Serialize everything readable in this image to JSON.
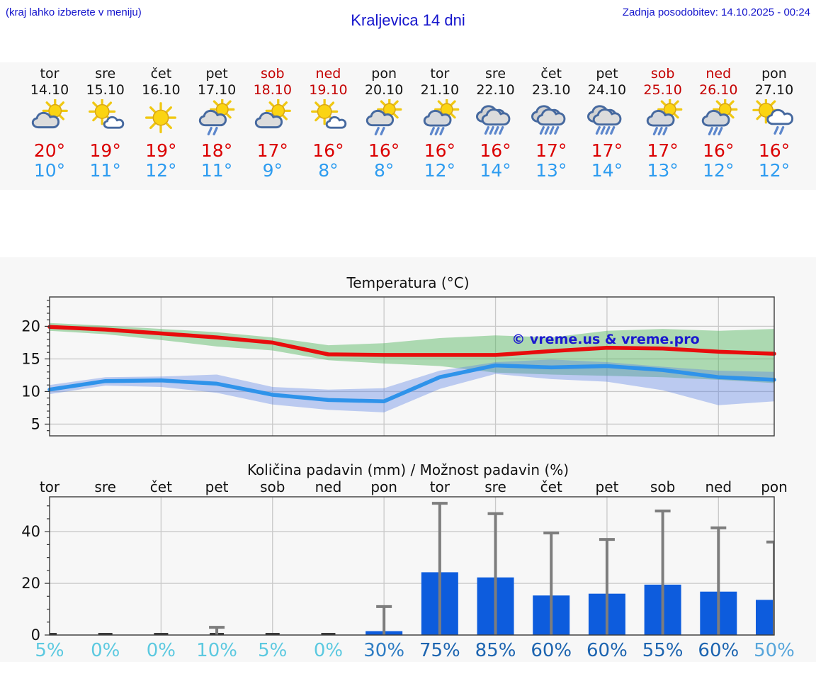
{
  "header": {
    "hint": "(kraj lahko izberete v meniju)",
    "title": "Kraljevica 14 dni",
    "last_update": "Zadnja posodobitev: 14.10.2025 - 00:24",
    "accent_color": "#1414cc"
  },
  "forecast_days": [
    {
      "name": "tor",
      "date": "14.10",
      "weekend": false,
      "icon": "sun-cloud",
      "tmax": "20°",
      "tmin": "10°"
    },
    {
      "name": "sre",
      "date": "15.10",
      "weekend": false,
      "icon": "sun-small-cloud",
      "tmax": "19°",
      "tmin": "11°"
    },
    {
      "name": "čet",
      "date": "16.10",
      "weekend": false,
      "icon": "sun",
      "tmax": "19°",
      "tmin": "12°"
    },
    {
      "name": "pet",
      "date": "17.10",
      "weekend": false,
      "icon": "sun-cloud-rain2",
      "tmax": "18°",
      "tmin": "11°"
    },
    {
      "name": "sob",
      "date": "18.10",
      "weekend": true,
      "icon": "sun-cloud",
      "tmax": "17°",
      "tmin": "9°"
    },
    {
      "name": "ned",
      "date": "19.10",
      "weekend": true,
      "icon": "sun-small-cloud",
      "tmax": "16°",
      "tmin": "8°"
    },
    {
      "name": "pon",
      "date": "20.10",
      "weekend": false,
      "icon": "sun-cloud-rain2",
      "tmax": "16°",
      "tmin": "8°"
    },
    {
      "name": "tor",
      "date": "21.10",
      "weekend": false,
      "icon": "sun-cloud-rain3",
      "tmax": "16°",
      "tmin": "12°"
    },
    {
      "name": "sre",
      "date": "22.10",
      "weekend": false,
      "icon": "clouds-rain4",
      "tmax": "16°",
      "tmin": "14°"
    },
    {
      "name": "čet",
      "date": "23.10",
      "weekend": false,
      "icon": "clouds-rain4",
      "tmax": "17°",
      "tmin": "13°"
    },
    {
      "name": "pet",
      "date": "24.10",
      "weekend": false,
      "icon": "clouds-rain4",
      "tmax": "17°",
      "tmin": "14°"
    },
    {
      "name": "sob",
      "date": "25.10",
      "weekend": true,
      "icon": "sun-cloud-rain3",
      "tmax": "17°",
      "tmin": "13°"
    },
    {
      "name": "ned",
      "date": "26.10",
      "weekend": true,
      "icon": "sun-cloud-rain3",
      "tmax": "16°",
      "tmin": "12°"
    },
    {
      "name": "pon",
      "date": "27.10",
      "weekend": false,
      "icon": "sun-whitecloud-rain2",
      "tmax": "16°",
      "tmin": "12°"
    }
  ],
  "chart_data": [
    {
      "type": "line",
      "title": "Temperatura (°C)",
      "x_days": [
        "tor",
        "sre",
        "čet",
        "pet",
        "sob",
        "ned",
        "pon",
        "tor",
        "sre",
        "čet",
        "pet",
        "sob",
        "ned",
        "pon"
      ],
      "ylim": [
        3.2,
        24.5
      ],
      "yticks": [
        5,
        10,
        15,
        20
      ],
      "grid_days": [
        2,
        4,
        6,
        8,
        10,
        12
      ],
      "watermark": "© vreme.us & vreme.pro",
      "series": [
        {
          "name": "max-temp",
          "color": "#e80c0c",
          "values": [
            19.9,
            19.5,
            18.9,
            18.3,
            17.5,
            15.7,
            15.6,
            15.6,
            15.6,
            16.2,
            16.7,
            16.6,
            16.1,
            15.8
          ]
        },
        {
          "name": "min-temp",
          "color": "#2f93ea",
          "values": [
            10.3,
            11.6,
            11.7,
            11.2,
            9.5,
            8.7,
            8.5,
            12.2,
            14.0,
            13.7,
            13.9,
            13.3,
            12.2,
            11.8
          ]
        }
      ],
      "bands": [
        {
          "name": "max-temp-range",
          "color": "rgba(80,180,90,0.45)",
          "upper": [
            20.5,
            20.1,
            19.6,
            19.1,
            18.3,
            17.1,
            17.4,
            18.2,
            18.6,
            18.3,
            19.3,
            19.6,
            19.3,
            19.6
          ],
          "lower": [
            19.3,
            18.8,
            17.9,
            16.9,
            16.3,
            14.8,
            14.3,
            13.9,
            12.9,
            12.6,
            12.4,
            12.2,
            11.8,
            11.3
          ]
        },
        {
          "name": "min-temp-range",
          "color": "rgba(90,130,230,0.38)",
          "upper": [
            11.0,
            12.2,
            12.3,
            12.6,
            10.7,
            10.3,
            10.5,
            13.2,
            14.5,
            14.9,
            14.5,
            13.8,
            13.2,
            13.0
          ],
          "lower": [
            9.6,
            10.9,
            10.7,
            9.8,
            8.0,
            7.2,
            6.8,
            10.4,
            12.7,
            11.9,
            11.5,
            10.2,
            7.9,
            8.5
          ]
        }
      ]
    },
    {
      "type": "bar",
      "title": "Količina padavin (mm) / Možnost padavin (%)",
      "categories": [
        "tor",
        "sre",
        "čet",
        "pet",
        "sob",
        "ned",
        "pon",
        "tor",
        "sre",
        "čet",
        "pet",
        "sob",
        "ned",
        "pon"
      ],
      "values": [
        0,
        0,
        0,
        0,
        0,
        0,
        1.5,
        24.3,
        22.3,
        15.3,
        16.0,
        19.5,
        16.8,
        13.6
      ],
      "whisker_max": [
        0,
        0,
        0,
        3,
        0,
        0,
        11,
        51,
        47,
        39.5,
        37,
        48,
        41.5,
        36
      ],
      "probability": [
        "5%",
        "0%",
        "0%",
        "10%",
        "5%",
        "0%",
        "30%",
        "75%",
        "85%",
        "60%",
        "60%",
        "55%",
        "60%",
        "50%"
      ],
      "prob_colors": [
        "#5cc9e0",
        "#5cc9e0",
        "#5cc9e0",
        "#5cc9e0",
        "#5cc9e0",
        "#5cc9e0",
        "#2e7cc3",
        "#1c64b0",
        "#1c64b0",
        "#1c64b0",
        "#1c64b0",
        "#1c64b0",
        "#1c64b0",
        "#58a6db"
      ],
      "ylim": [
        0,
        53.5
      ],
      "yticks": [
        0,
        20,
        40
      ],
      "grid_days": [
        2,
        4,
        6,
        8,
        10,
        12
      ],
      "bar_color": "#0d5cdd",
      "whisker_color": "#7d7d7d"
    }
  ]
}
